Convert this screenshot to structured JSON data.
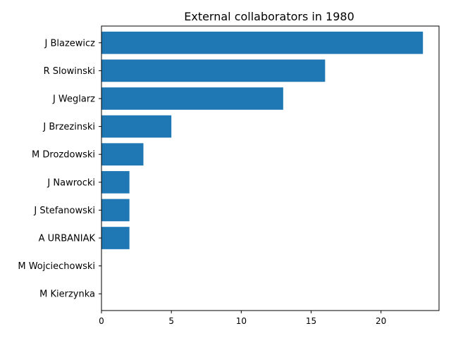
{
  "chart_data": {
    "type": "bar",
    "orientation": "horizontal",
    "title": "External collaborators in 1980",
    "xlabel": "",
    "ylabel": "",
    "categories": [
      "J Blazewicz",
      "R Slowinski",
      "J Weglarz",
      "J Brzezinski",
      "M Drozdowski",
      "J Nawrocki",
      "J Stefanowski",
      "A URBANIAK",
      "M Wojciechowski",
      "M Kierzynka"
    ],
    "values": [
      23,
      16,
      13,
      5,
      3,
      2,
      2,
      2,
      0,
      0
    ],
    "xlim": [
      0,
      24.15
    ],
    "xticks": [
      0,
      5,
      10,
      15,
      20
    ],
    "grid": false,
    "bar_color": "#1f77b4"
  }
}
